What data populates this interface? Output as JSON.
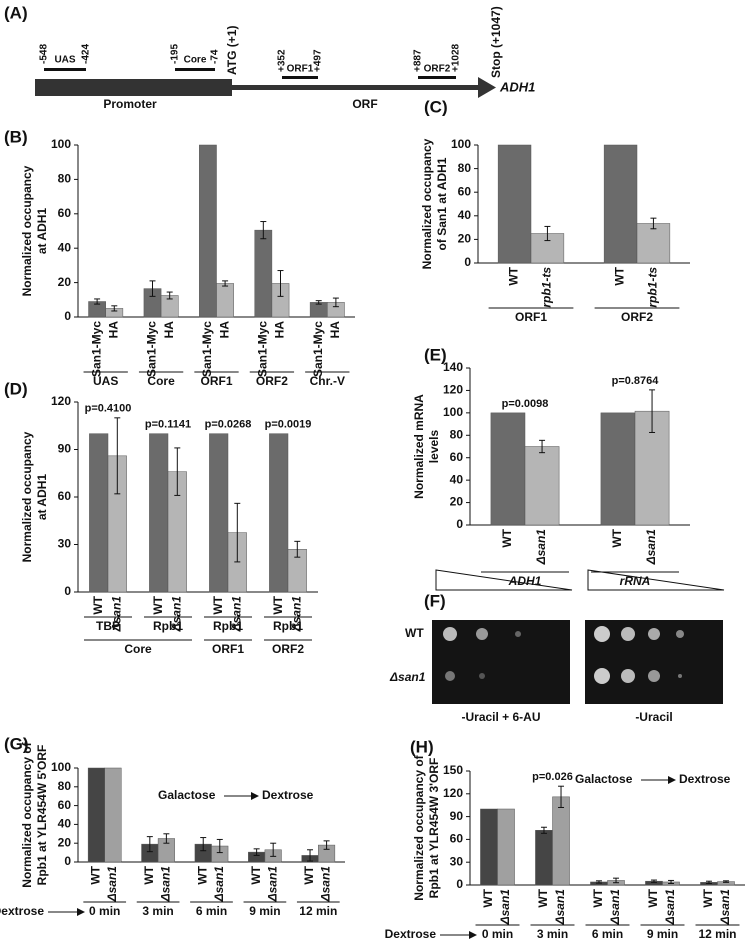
{
  "panel_a": {
    "label": "(A)",
    "positions": [
      "-548",
      "-424",
      "-195",
      "-74",
      "ATG (+1)",
      "+352",
      "+497",
      "+887",
      "+1028",
      "Stop (+1047)"
    ],
    "regions": [
      "UAS",
      "Core",
      "ORF1",
      "ORF2"
    ],
    "segments": [
      "Promoter",
      "ORF"
    ],
    "gene": "ADH1"
  },
  "panel_f": {
    "label": "(F)",
    "strains": [
      "WT",
      "Δsan1"
    ],
    "media": [
      "-Uracil + 6-AU",
      "-Uracil"
    ]
  },
  "chart_data": [
    {
      "type": "bar",
      "panel_label": "(B)",
      "y_label": [
        "Normalized occupancy",
        "at ADH1"
      ],
      "categories": [
        "UAS",
        "Core",
        "ORF1",
        "ORF2",
        "Chr.-V"
      ],
      "series": [
        {
          "name": "San1-Myc",
          "color": "#6b6b6b",
          "values": [
            9,
            16.5,
            100,
            50.5,
            8.5
          ],
          "errors": [
            1.5,
            4.5,
            null,
            5,
            1
          ]
        },
        {
          "name": "HA",
          "color": "#b5b5b5",
          "values": [
            5,
            12.5,
            19.5,
            19.5,
            8.5
          ],
          "errors": [
            1.5,
            2,
            1.5,
            7.5,
            2.5
          ]
        }
      ],
      "ylim": [
        0,
        100
      ],
      "yticks": [
        0,
        20,
        40,
        60,
        80,
        100
      ]
    },
    {
      "type": "bar",
      "panel_label": "(C)",
      "y_label": [
        "Normalized occupancy",
        "of San1 at ADH1"
      ],
      "categories": [
        "ORF1",
        "ORF2"
      ],
      "series": [
        {
          "name": "WT",
          "color": "#6b6b6b",
          "values": [
            100,
            100
          ],
          "errors": [
            null,
            null
          ]
        },
        {
          "name": "rpb1-ts",
          "color": "#b5b5b5",
          "values": [
            25,
            33.5
          ],
          "errors": [
            6,
            4.5
          ]
        }
      ],
      "ylim": [
        0,
        100
      ],
      "yticks": [
        0,
        20,
        40,
        60,
        80,
        100
      ]
    },
    {
      "type": "bar",
      "panel_label": "(D)",
      "y_label": [
        "Normalized occupancy",
        "at ADH1"
      ],
      "categories": [
        "TBP",
        "Rpb1",
        "Rpb1",
        "Rpb1"
      ],
      "group_labels": [
        "Core",
        null,
        "ORF1",
        "ORF2"
      ],
      "p_labels": [
        "p=0.4100",
        "p=0.1141",
        "p=0.0268",
        "p=0.0019"
      ],
      "series": [
        {
          "name": "WT",
          "color": "#6b6b6b",
          "values": [
            100,
            100,
            100,
            100
          ],
          "errors": [
            null,
            null,
            null,
            null
          ]
        },
        {
          "name": "Δsan1",
          "color": "#b5b5b5",
          "values": [
            86,
            76,
            37.5,
            27
          ],
          "errors": [
            24,
            15,
            18.5,
            5
          ]
        }
      ],
      "ylim": [
        0,
        120
      ],
      "yticks": [
        0,
        30,
        60,
        90,
        120
      ]
    },
    {
      "type": "bar",
      "panel_label": "(E)",
      "y_label": [
        "Normalized mRNA",
        "levels"
      ],
      "categories": [
        "ADH1",
        "rRNA"
      ],
      "p_labels": [
        "p=0.0098",
        "p=0.8764"
      ],
      "series": [
        {
          "name": "WT",
          "color": "#6b6b6b",
          "values": [
            100,
            100
          ],
          "errors": [
            null,
            null
          ]
        },
        {
          "name": "Δsan1",
          "color": "#b5b5b5",
          "values": [
            70,
            101.5
          ],
          "errors": [
            5.5,
            19
          ]
        }
      ],
      "ylim": [
        0,
        140
      ],
      "yticks": [
        0,
        20,
        40,
        60,
        80,
        100,
        120,
        140
      ]
    },
    {
      "type": "bar",
      "panel_label": "(G)",
      "y_label": [
        "Normalized occupancy of",
        "Rpb1 at YLR454W 5'ORF"
      ],
      "categories": [
        "0 min",
        "3 min",
        "6 min",
        "9 min",
        "12 min"
      ],
      "x_prefix": "Dextrose",
      "condition_change": {
        "from": "Galactose",
        "to": "Dextrose"
      },
      "series": [
        {
          "name": "WT",
          "color": "#454545",
          "values": [
            100,
            19,
            19,
            10.5,
            7
          ],
          "errors": [
            null,
            8,
            7,
            3.5,
            6
          ]
        },
        {
          "name": "Δsan1",
          "color": "#a0a0a0",
          "values": [
            100,
            25,
            17,
            13,
            18
          ],
          "errors": [
            null,
            5,
            7,
            7,
            4.5
          ]
        }
      ],
      "ylim": [
        0,
        100
      ],
      "yticks": [
        0,
        20,
        40,
        60,
        80,
        100
      ]
    },
    {
      "type": "bar",
      "panel_label": "(H)",
      "y_label": [
        "Normalized occupancy of",
        "Rpb1 at YLR454W 3'ORF"
      ],
      "categories": [
        "0 min",
        "3 min",
        "6 min",
        "9 min",
        "12 min"
      ],
      "x_prefix": "Dextrose",
      "condition_change": {
        "from": "Galactose",
        "to": "Dextrose"
      },
      "p_labels": [
        null,
        "p=0.026",
        null,
        null,
        null
      ],
      "series": [
        {
          "name": "WT",
          "color": "#454545",
          "values": [
            100,
            72,
            4,
            5,
            3.5
          ],
          "errors": [
            null,
            4,
            1.5,
            1.5,
            1.5
          ]
        },
        {
          "name": "Δsan1",
          "color": "#a0a0a0",
          "values": [
            100,
            116,
            6,
            4,
            4.5
          ],
          "errors": [
            null,
            14,
            3,
            2,
            1
          ]
        }
      ],
      "ylim": [
        0,
        150
      ],
      "yticks": [
        0,
        30,
        60,
        90,
        120,
        150
      ]
    }
  ]
}
